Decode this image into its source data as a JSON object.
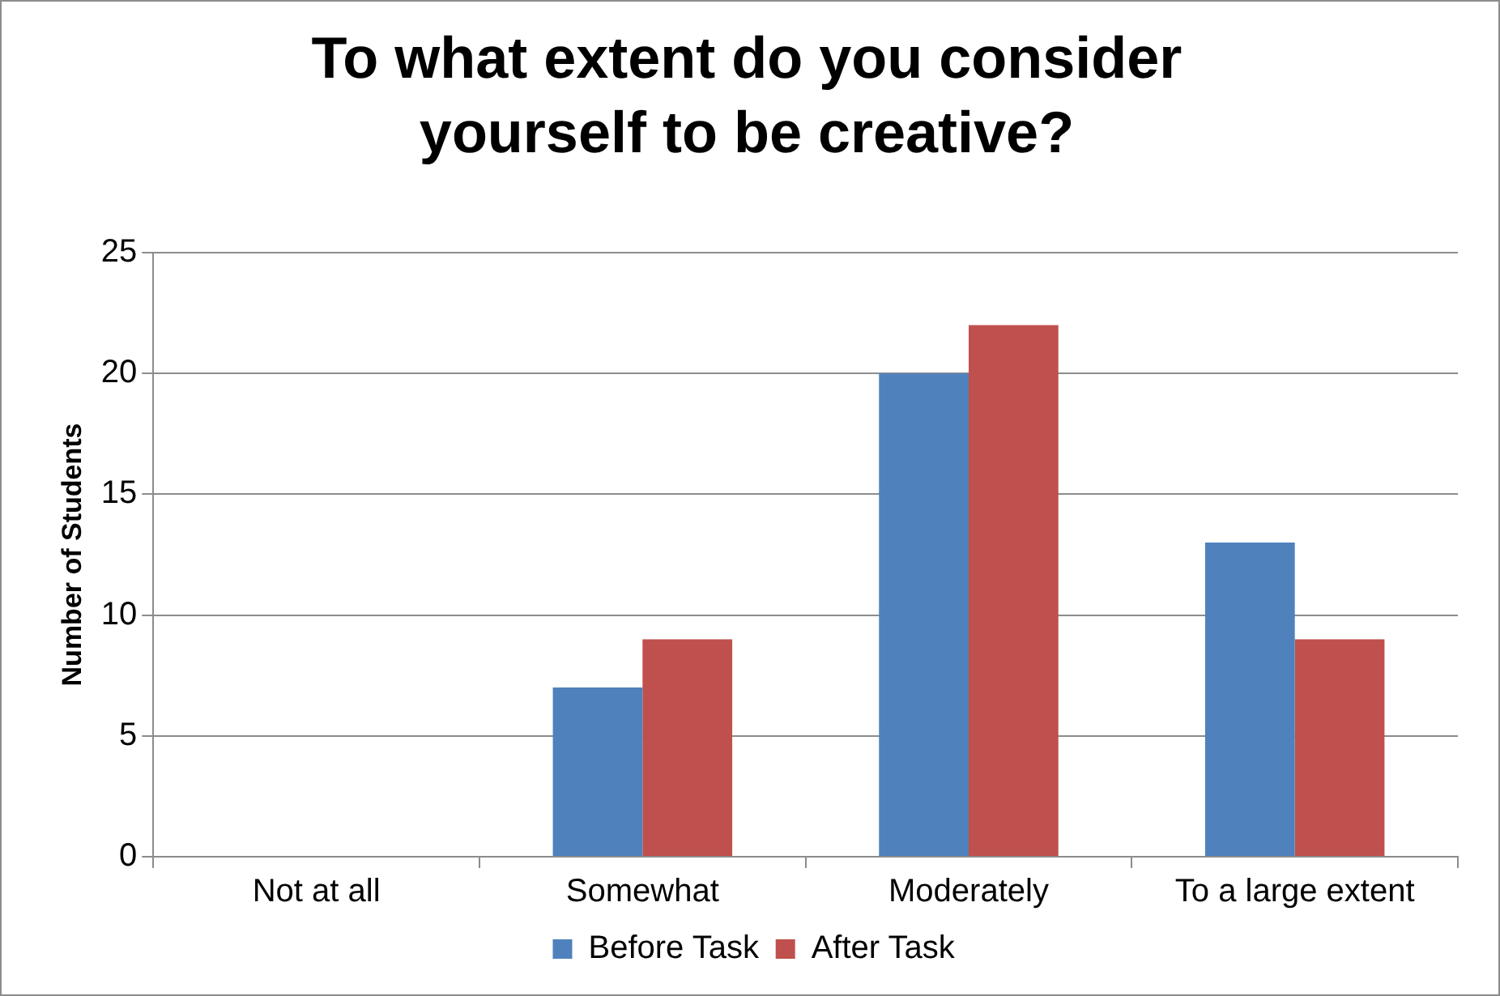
{
  "chart_data": {
    "type": "bar",
    "title": "To what extent do you consider yourself to be creative?",
    "ylabel": "Number of Students",
    "categories": [
      "Not at all",
      "Somewhat",
      "Moderately",
      "To a large extent"
    ],
    "series": [
      {
        "name": "Before Task",
        "color": "#4f81bd",
        "values": [
          0,
          7,
          20,
          13
        ]
      },
      {
        "name": "After Task",
        "color": "#c0504d",
        "values": [
          0,
          9,
          22,
          9
        ]
      }
    ],
    "ylim": [
      0,
      25
    ],
    "yticks": [
      0,
      5,
      10,
      15,
      20,
      25
    ],
    "grid": "y",
    "legend": "bottom"
  }
}
